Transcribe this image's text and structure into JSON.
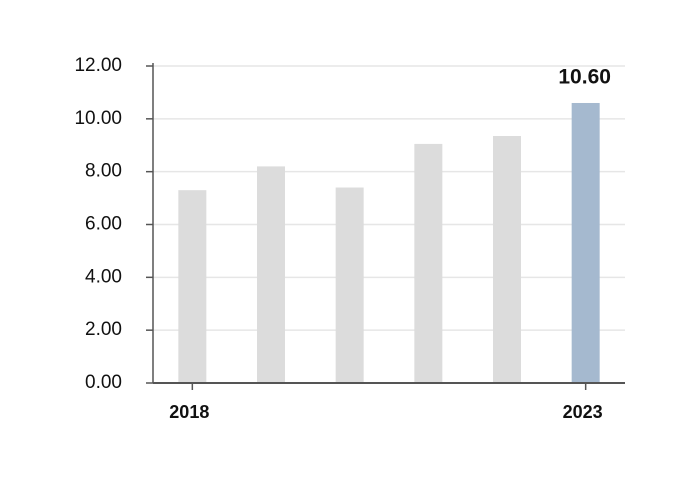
{
  "chart_data": {
    "type": "bar",
    "categories": [
      "2018",
      null,
      null,
      null,
      null,
      "2023"
    ],
    "values": [
      7.3,
      8.2,
      7.4,
      9.05,
      9.35,
      10.6
    ],
    "value_labels": [
      null,
      null,
      null,
      null,
      null,
      "10.60"
    ],
    "colors": [
      "#dcdcdc",
      "#dcdcdc",
      "#dcdcdc",
      "#dcdcdc",
      "#dcdcdc",
      "#a5b9cf"
    ],
    "ylim": [
      0,
      12
    ],
    "yticks": [
      {
        "value": 0,
        "label": "0.00"
      },
      {
        "value": 2,
        "label": "2.00"
      },
      {
        "value": 4,
        "label": "4.00"
      },
      {
        "value": 6,
        "label": "6.00"
      },
      {
        "value": 8,
        "label": "8.00"
      },
      {
        "value": 10,
        "label": "10.00"
      },
      {
        "value": 12,
        "label": "12.00"
      }
    ],
    "grid": true
  }
}
